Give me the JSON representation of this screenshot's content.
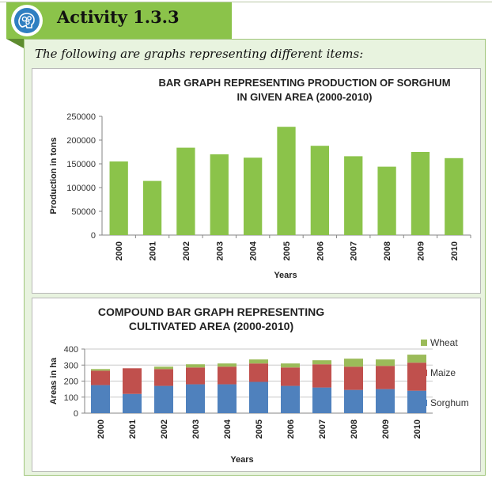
{
  "header": {
    "title": "Activity 1.3.3",
    "badge_icon": "brain-gears-icon"
  },
  "intro": "The following are graphs representing different items:",
  "colors": {
    "accent": "#8bc34a",
    "sorghum": "#4f81bd",
    "maize": "#c0504d",
    "wheat": "#9bbb59"
  },
  "chart_data": [
    {
      "type": "bar",
      "title_lines": [
        "BAR GRAPH REPRESENTING PRODUCTION OF SORGHUM",
        "IN GIVEN AREA (2000-2010)"
      ],
      "xlabel": "Years",
      "ylabel": "Production in tons",
      "categories": [
        "2000",
        "2001",
        "2002",
        "2003",
        "2004",
        "2005",
        "2006",
        "2007",
        "2008",
        "2009",
        "2010"
      ],
      "values": [
        155000,
        114000,
        184000,
        170000,
        163000,
        228000,
        188000,
        166000,
        144000,
        175000,
        162000
      ],
      "ylim": [
        0,
        250000
      ],
      "yticks": [
        0,
        50000,
        100000,
        150000,
        200000,
        250000
      ],
      "ytick_labels": [
        "0",
        "50000",
        "100000",
        "150000",
        "200000",
        "250000"
      ],
      "grid": false,
      "color": "#8bc34a"
    },
    {
      "type": "bar",
      "stacked": true,
      "title_lines": [
        "COMPOUND BAR GRAPH REPRESENTING",
        "CULTIVATED AREA (2000-2010)"
      ],
      "xlabel": "Years",
      "ylabel": "Areas in ha",
      "categories": [
        "2000",
        "2001",
        "2002",
        "2003",
        "2004",
        "2005",
        "2006",
        "2007",
        "2008",
        "2009",
        "2010"
      ],
      "series": [
        {
          "name": "Sorghum",
          "values": [
            175,
            120,
            170,
            180,
            180,
            195,
            170,
            160,
            145,
            150,
            140
          ],
          "color": "#4f81bd"
        },
        {
          "name": "Maize",
          "values": [
            90,
            160,
            105,
            105,
            110,
            115,
            115,
            145,
            145,
            145,
            175
          ],
          "color": "#c0504d"
        },
        {
          "name": "Wheat",
          "values": [
            10,
            0,
            15,
            20,
            20,
            25,
            25,
            25,
            50,
            40,
            50
          ],
          "color": "#9bbb59"
        }
      ],
      "ylim": [
        0,
        400
      ],
      "yticks": [
        0,
        100,
        200,
        300,
        400
      ],
      "ytick_labels": [
        "0",
        "100",
        "200",
        "300",
        "400"
      ],
      "grid": true,
      "legend": "right"
    }
  ]
}
